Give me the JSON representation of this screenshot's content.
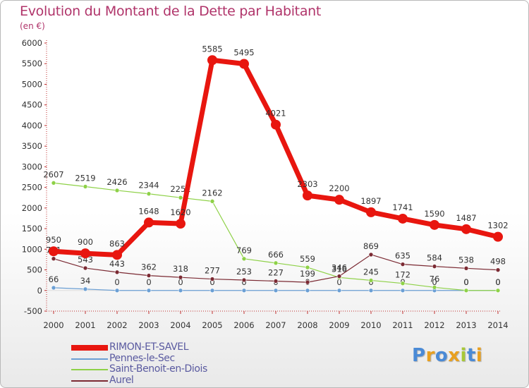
{
  "title": "Evolution du Montant de la Dette par Habitant",
  "unit": "(en €)",
  "logo": {
    "text": "Proxiti",
    "letter_colors": [
      "#4a8ad6",
      "#e8a020",
      "#4a8ad6",
      "#e8a020",
      "#a8c838",
      "#4a8ad6",
      "#e8a020"
    ]
  },
  "colors": {
    "axis_text": "#333333",
    "grid": "#dddddd",
    "label_text": "#333333"
  },
  "chart_data": {
    "type": "line",
    "title": "Evolution du Montant de la Dette par Habitant",
    "subtitle": "(en €)",
    "xlabel": "",
    "ylabel": "",
    "x": [
      "2000",
      "2001",
      "2002",
      "2003",
      "2004",
      "2005",
      "2006",
      "2007",
      "2008",
      "2009",
      "2010",
      "2011",
      "2012",
      "2013",
      "2014"
    ],
    "ylim": [
      -500,
      6000
    ],
    "yticks": [
      -500,
      0,
      500,
      1000,
      1500,
      2000,
      2500,
      3000,
      3500,
      4000,
      4500,
      5000,
      5500,
      6000
    ],
    "grid": false,
    "legend_position": "bottom-left",
    "series": [
      {
        "name": "RIMON-ET-SAVEL",
        "color": "#e8160f",
        "width": 7,
        "marker": 7,
        "values": [
          950,
          900,
          863,
          1648,
          1620,
          5585,
          5495,
          4021,
          2303,
          2200,
          1897,
          1741,
          1590,
          1487,
          1302
        ]
      },
      {
        "name": "Pennes-le-Sec",
        "color": "#6b9fd4",
        "width": 1.2,
        "marker": 3,
        "values": [
          66,
          34,
          0,
          0,
          0,
          0,
          0,
          0,
          0,
          0,
          0,
          0,
          0,
          0,
          0
        ]
      },
      {
        "name": "Saint-Benoit-en-Diois",
        "color": "#8ed147",
        "width": 1.2,
        "marker": 3,
        "values": [
          2607,
          2519,
          2426,
          2344,
          2251,
          2162,
          769,
          666,
          559,
          316,
          245,
          172,
          76,
          0,
          0
        ]
      },
      {
        "name": "Aurel",
        "color": "#7b2a33",
        "width": 1.2,
        "marker": 3,
        "values": [
          771,
          543,
          443,
          362,
          318,
          277,
          253,
          227,
          199,
          346,
          869,
          635,
          584,
          538,
          498
        ]
      }
    ]
  }
}
